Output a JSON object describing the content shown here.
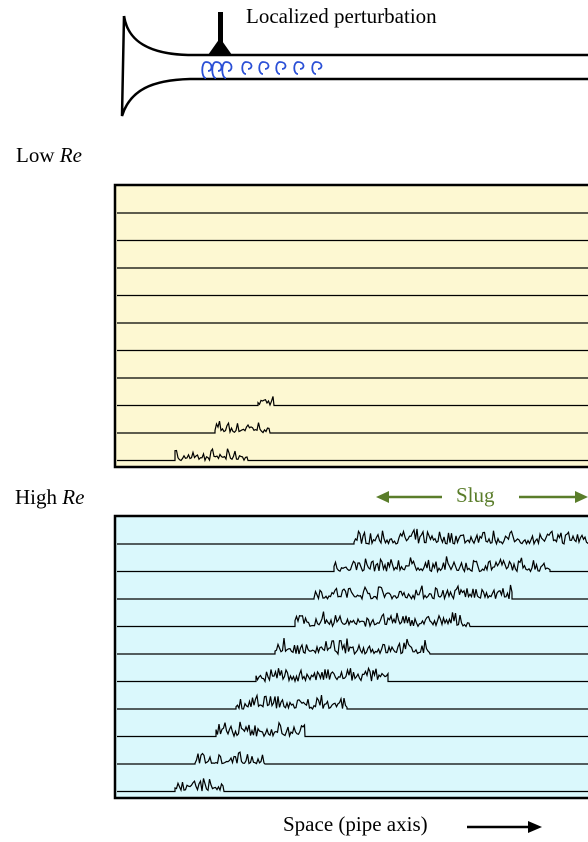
{
  "pipe": {
    "label": "Localized perturbation"
  },
  "low_panel": {
    "label_prefix": "Low ",
    "label_re": "Re",
    "background": "#fdf8d2",
    "line_count": 10
  },
  "high_panel": {
    "label_prefix": "High ",
    "label_re": "Re",
    "background": "#daf8fc",
    "line_count": 10
  },
  "slug": {
    "label": "Slug",
    "color": "#5a7d2a"
  },
  "axis": {
    "label": "Space (pipe axis)",
    "arrow_icon": "arrow-right-icon"
  },
  "colors": {
    "eddy": "#2a4fd6",
    "trace": "#000000"
  }
}
